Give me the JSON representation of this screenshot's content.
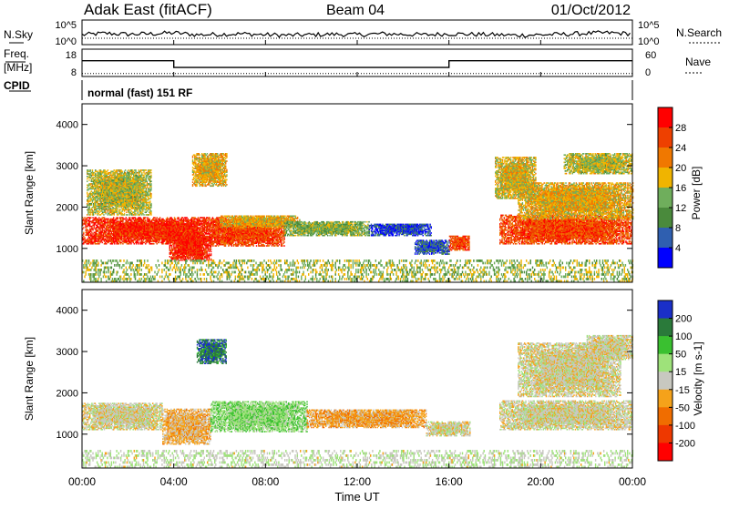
{
  "header": {
    "station": "Adak East (fitACF)",
    "beam": "Beam 04",
    "date": "01/Oct/2012"
  },
  "nsky_panel": {
    "left_label": "N.Sky",
    "right_label": "N.Search",
    "ticks": [
      "10^5",
      "10^0"
    ]
  },
  "freq_panel": {
    "left_label_1": "Freq.",
    "left_label_2": "[MHz]",
    "right_label": "Nave",
    "left_ticks": [
      "18",
      "8"
    ],
    "right_ticks": [
      "60",
      "0"
    ]
  },
  "cpid": {
    "label": "CPID",
    "mode": "normal (fast) 151 RF"
  },
  "colors": {
    "power": [
      "#0000ff",
      "#2f5fb0",
      "#4a8a3c",
      "#6fae5c",
      "#f0b400",
      "#f07800",
      "#ee4000",
      "#ff0000"
    ],
    "velocity": [
      "#1a2fc8",
      "#2a7a3a",
      "#3ac030",
      "#9ee27a",
      "#c8c8c0",
      "#f5a21a",
      "#f06d00",
      "#ee3800",
      "#ff0000"
    ]
  },
  "chart_data": [
    {
      "type": "line",
      "name": "nsky",
      "x": [
        0,
        1,
        2,
        3,
        4,
        5,
        6,
        7,
        8,
        9,
        10,
        11,
        12,
        13,
        14,
        15,
        16,
        17,
        18,
        19,
        20,
        21,
        22,
        23,
        24
      ],
      "y_log": [
        2.0,
        2.3,
        2.1,
        2.2,
        2.4,
        2.0,
        2.1,
        2.2,
        2.0,
        1.9,
        2.0,
        2.1,
        2.0,
        2.2,
        2.1,
        2.0,
        2.2,
        2.1,
        2.0,
        1.9,
        2.0,
        2.1,
        2.3,
        2.4,
        2.2
      ],
      "ylim_log": [
        0,
        5
      ],
      "xlim": [
        0,
        24
      ]
    },
    {
      "type": "line",
      "name": "frequency",
      "x": [
        0,
        4,
        4,
        16,
        16,
        24
      ],
      "y": [
        13.5,
        13.5,
        10.3,
        10.3,
        13.5,
        13.5
      ],
      "ylim": [
        6,
        19
      ],
      "nave_y": 10,
      "xlim": [
        0,
        24
      ]
    },
    {
      "type": "heatmap",
      "name": "power",
      "ylabel": "Slant Range [km]",
      "colorbar_label": "Power [dB]",
      "colorbar_ticks": [
        "28",
        "24",
        "20",
        "16",
        "12",
        "8",
        "4"
      ],
      "colorbar_range": [
        0,
        32
      ],
      "ylim": [
        180,
        4500
      ],
      "yticks": [
        "4000",
        "3000",
        "2000",
        "1000"
      ],
      "xlim": [
        0,
        24
      ],
      "bands": [
        {
          "t0": 0.0,
          "t1": 6.3,
          "r0": 1100,
          "r1": 1750,
          "level": 0.92
        },
        {
          "t0": 3.8,
          "t1": 5.6,
          "r0": 700,
          "r1": 1300,
          "level": 0.95
        },
        {
          "t0": 5.6,
          "t1": 8.8,
          "r0": 1050,
          "r1": 1700,
          "level": 0.85
        },
        {
          "t0": 6.0,
          "t1": 9.5,
          "r0": 1500,
          "r1": 1800,
          "level": 0.6
        },
        {
          "t0": 8.8,
          "t1": 12.5,
          "r0": 1300,
          "r1": 1650,
          "level": 0.4
        },
        {
          "t0": 12.5,
          "t1": 15.2,
          "r0": 1300,
          "r1": 1600,
          "level": 0.1
        },
        {
          "t0": 14.5,
          "t1": 16.0,
          "r0": 850,
          "r1": 1200,
          "level": 0.15
        },
        {
          "t0": 16.0,
          "t1": 16.9,
          "r0": 950,
          "r1": 1300,
          "level": 0.85
        },
        {
          "t0": 18.2,
          "t1": 24.0,
          "r0": 1100,
          "r1": 1800,
          "level": 0.85
        },
        {
          "t0": 19.0,
          "t1": 24.0,
          "r0": 1700,
          "r1": 2600,
          "level": 0.6
        },
        {
          "t0": 18.0,
          "t1": 19.8,
          "r0": 2200,
          "r1": 3200,
          "level": 0.55
        },
        {
          "t0": 21.0,
          "t1": 24.0,
          "r0": 2800,
          "r1": 3300,
          "level": 0.5
        },
        {
          "t0": 0.2,
          "t1": 3.0,
          "r0": 1800,
          "r1": 2900,
          "level": 0.5
        },
        {
          "t0": 4.8,
          "t1": 6.3,
          "r0": 2500,
          "r1": 3300,
          "level": 0.6
        },
        {
          "t0": 0.0,
          "t1": 24.0,
          "r0": 180,
          "r1": 700,
          "level": 0.45,
          "sparse": true
        }
      ]
    },
    {
      "type": "heatmap",
      "name": "velocity",
      "ylabel": "Slant Range [km]",
      "xlabel": "Time UT",
      "colorbar_label": "Velocity [m s-1]",
      "colorbar_ticks": [
        "200",
        "100",
        "50",
        "15",
        "-15",
        "-50",
        "-100",
        "-200"
      ],
      "colorbar_range": [
        -250,
        250
      ],
      "ylim": [
        180,
        4500
      ],
      "yticks": [
        "4000",
        "3000",
        "2000",
        "1000"
      ],
      "xticks": [
        "00:00",
        "04:00",
        "08:00",
        "12:00",
        "16:00",
        "20:00",
        "00:00"
      ],
      "xlim": [
        0,
        24
      ],
      "bands": [
        {
          "t0": 0.0,
          "t1": 3.5,
          "r0": 1100,
          "r1": 1750,
          "level": 0.0
        },
        {
          "t0": 3.5,
          "t1": 5.6,
          "r0": 750,
          "r1": 1600,
          "level": -0.2
        },
        {
          "t0": 5.6,
          "t1": 9.8,
          "r0": 1050,
          "r1": 1800,
          "level": 0.3
        },
        {
          "t0": 9.8,
          "t1": 15.0,
          "r0": 1150,
          "r1": 1600,
          "level": -0.25
        },
        {
          "t0": 15.0,
          "t1": 16.9,
          "r0": 950,
          "r1": 1300,
          "level": 0.0
        },
        {
          "t0": 18.2,
          "t1": 24.0,
          "r0": 1100,
          "r1": 1800,
          "level": 0.0
        },
        {
          "t0": 19.0,
          "t1": 23.5,
          "r0": 1900,
          "r1": 3200,
          "level": 0.0
        },
        {
          "t0": 22.0,
          "t1": 24.0,
          "r0": 2800,
          "r1": 3400,
          "level": 0.0
        },
        {
          "t0": 5.0,
          "t1": 6.3,
          "r0": 2700,
          "r1": 3300,
          "level": 0.8
        },
        {
          "t0": 0.0,
          "t1": 24.0,
          "r0": 180,
          "r1": 600,
          "level": 0.1,
          "sparse": true
        }
      ]
    }
  ]
}
